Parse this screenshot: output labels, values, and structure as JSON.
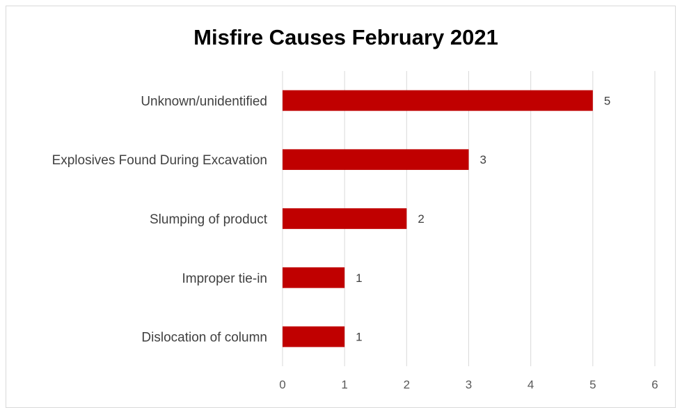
{
  "chart_data": {
    "type": "bar",
    "orientation": "horizontal",
    "title": "Misfire Causes February 2021",
    "categories": [
      "Unknown/unidentified",
      "Explosives Found During Excavation",
      "Slumping of product",
      "Improper tie-in",
      "Dislocation of column"
    ],
    "values": [
      5,
      3,
      2,
      1,
      1
    ],
    "xlim": [
      0,
      6
    ],
    "xticks": [
      0,
      1,
      2,
      3,
      4,
      5,
      6
    ],
    "grid": "vertical",
    "legend": "none",
    "data_labels": true
  },
  "colors": {
    "bar": "#c00000",
    "grid": "#d9d9d9"
  }
}
